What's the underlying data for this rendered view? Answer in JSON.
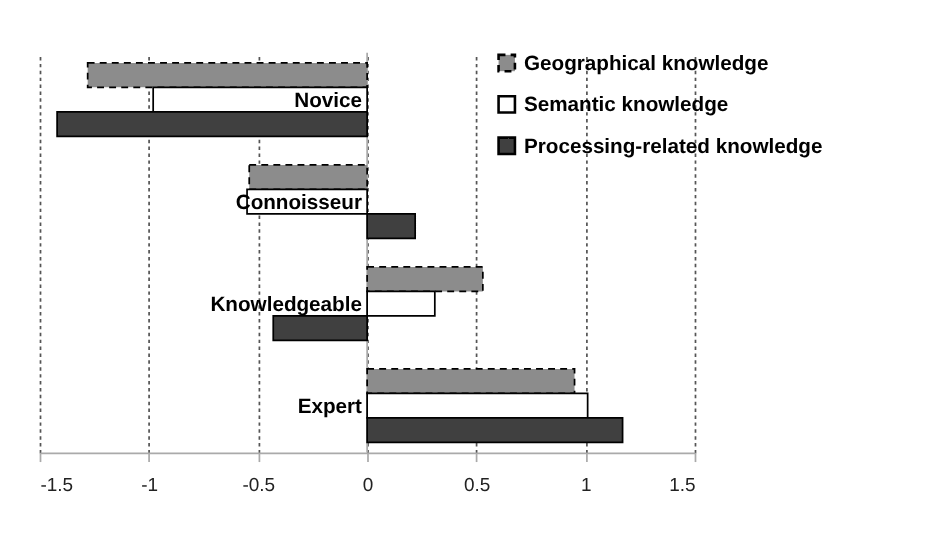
{
  "chart_data": {
    "type": "bar",
    "orientation": "horizontal",
    "categories": [
      "Novice",
      "Connoisseur",
      "Knowledgeable",
      "Expert"
    ],
    "series": [
      {
        "name": "Geographical knowledge",
        "color": "#8c8c8c",
        "line_style": "dashed",
        "values": [
          -1.28,
          -0.54,
          0.53,
          0.95
        ]
      },
      {
        "name": "Semantic knowledge",
        "color": "#ffffff",
        "line_style": "solid",
        "values": [
          -0.98,
          -0.55,
          0.31,
          1.01
        ]
      },
      {
        "name": "Processing-related knowledge",
        "color": "#404040",
        "line_style": "solid",
        "values": [
          -1.42,
          0.22,
          -0.43,
          1.17
        ]
      }
    ],
    "xlim": [
      -1.5,
      1.5
    ],
    "xticks": [
      -1.5,
      -1,
      -0.5,
      0,
      0.5,
      1,
      1.5
    ],
    "grid": "x",
    "legend": "top right"
  }
}
